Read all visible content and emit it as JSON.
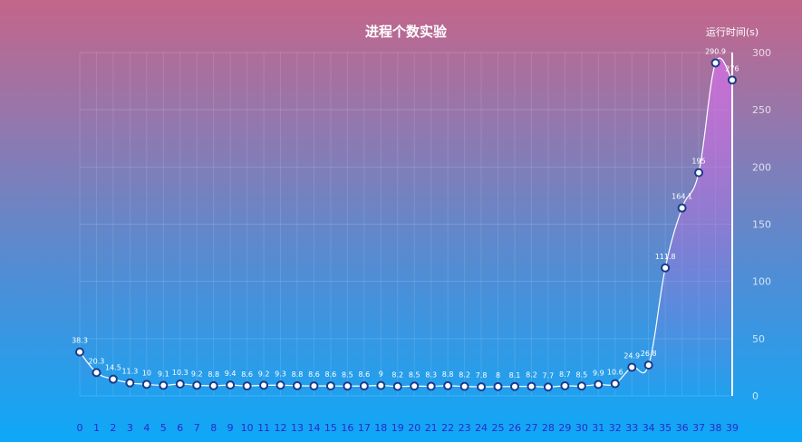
{
  "chart_data": {
    "type": "line",
    "title": "进程个数实验",
    "ylabel": "运行时间(s)",
    "xlabel": "",
    "categories": [
      "0",
      "1",
      "2",
      "3",
      "4",
      "5",
      "6",
      "7",
      "8",
      "9",
      "10",
      "11",
      "12",
      "13",
      "14",
      "15",
      "16",
      "17",
      "18",
      "19",
      "20",
      "21",
      "22",
      "23",
      "24",
      "25",
      "26",
      "27",
      "28",
      "29",
      "30",
      "31",
      "32",
      "33",
      "34",
      "35",
      "36",
      "37",
      "38",
      "39"
    ],
    "values": [
      38.3,
      20.3,
      14.5,
      11.3,
      10,
      9.1,
      10.3,
      9.2,
      8.8,
      9.4,
      8.6,
      9.2,
      9.3,
      8.8,
      8.6,
      8.6,
      8.5,
      8.6,
      9,
      8.2,
      8.5,
      8.3,
      8.8,
      8.2,
      7.8,
      8,
      8.1,
      8.2,
      7.7,
      8.7,
      8.5,
      9.9,
      10.6,
      24.9,
      26.8,
      111.8,
      164.1,
      195,
      290.9,
      276
    ],
    "y_ticks": [
      "0",
      "50",
      "100",
      "150",
      "200",
      "250",
      "300"
    ],
    "ylim": [
      0,
      300
    ],
    "y_axis_position": "right",
    "grid": true,
    "area_fill": true,
    "colors": {
      "line": "#ffffff",
      "marker_fill": "#ffffff",
      "marker_stroke": "#1a3a8a",
      "area": "#c86ad8",
      "axis": "#ffffff",
      "x_tick_text": "#2b28c9"
    }
  }
}
